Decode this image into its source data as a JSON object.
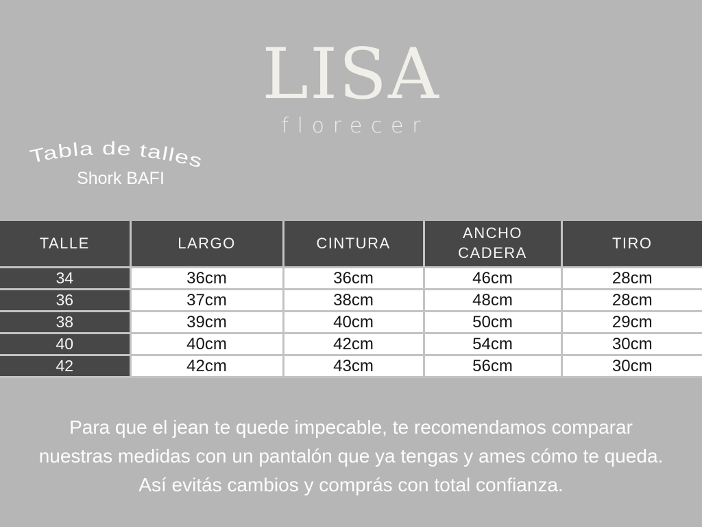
{
  "brand": {
    "name": "LISA",
    "tagline": "florecer"
  },
  "title_block": {
    "curved_title": "Tabla de talles",
    "product_name": "Shork BAFI"
  },
  "size_table": {
    "columns": [
      "TALLE",
      "LARGO",
      "CINTURA",
      "ANCHO CADERA",
      "TIRO"
    ],
    "rows": [
      [
        "34",
        "36cm",
        "36cm",
        "46cm",
        "28cm"
      ],
      [
        "36",
        "37cm",
        "38cm",
        "48cm",
        "28cm"
      ],
      [
        "38",
        "39cm",
        "40cm",
        "50cm",
        "29cm"
      ],
      [
        "40",
        "40cm",
        "42cm",
        "54cm",
        "30cm"
      ],
      [
        "42",
        "42cm",
        "43cm",
        "56cm",
        "30cm"
      ]
    ]
  },
  "footer": {
    "lines": [
      "Para que el jean te quede impecable, te recomendamos comparar",
      "nuestras medidas con un pantalón que ya tengas y ames cómo te queda.",
      "Así evitás cambios y comprás con total confianza."
    ]
  },
  "colors": {
    "background": "#b6b6b6",
    "table_header": "#474747",
    "grid_line": "#c3c3c3",
    "cell_background": "#ffffff",
    "light_text": "#fdfdfd",
    "logo_cream": "#f1efe9",
    "cell_text": "#151515"
  }
}
